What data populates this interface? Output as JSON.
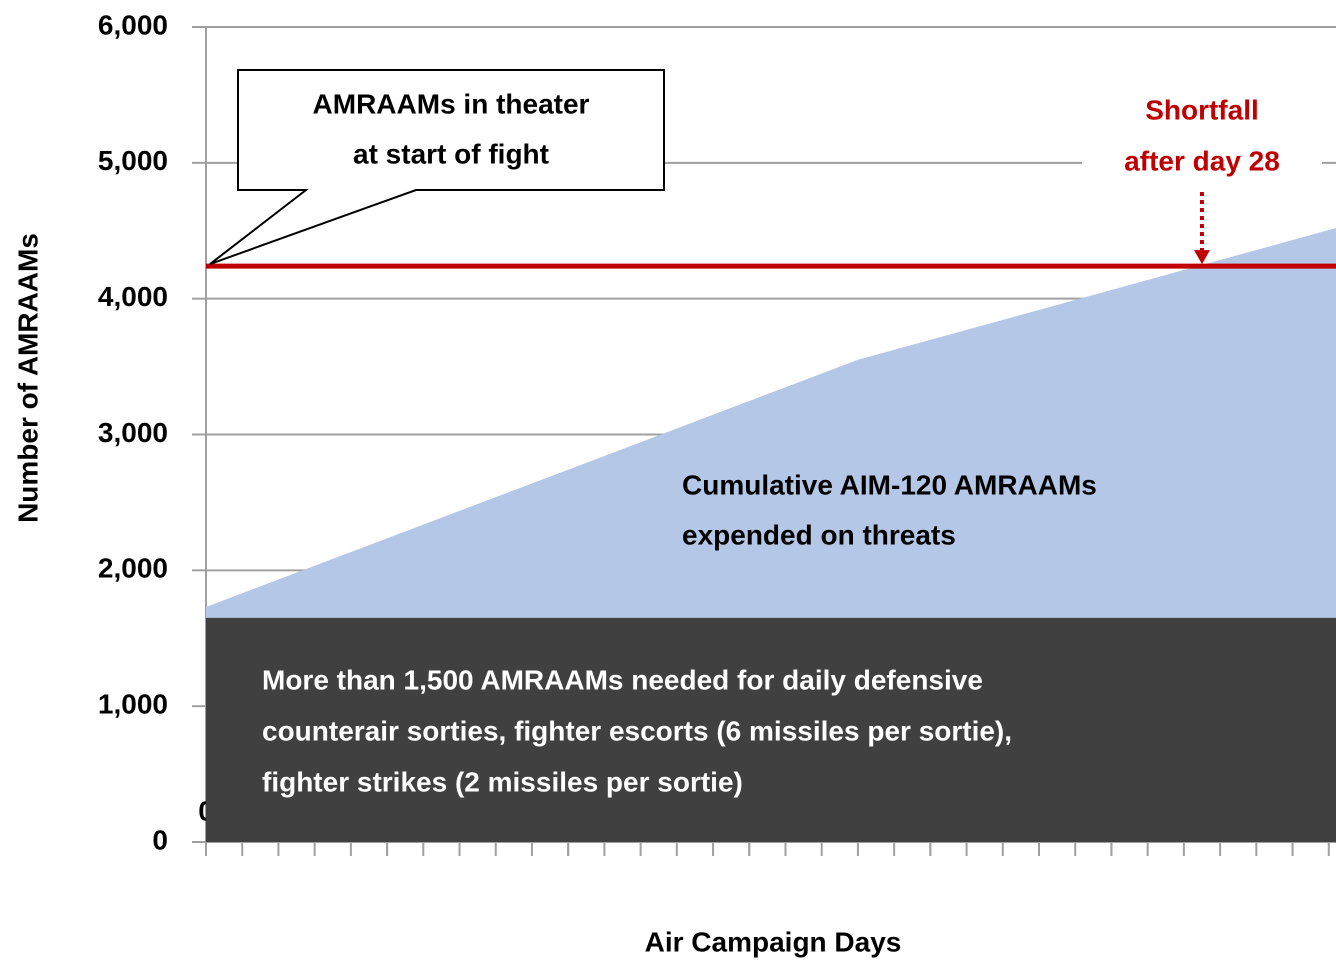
{
  "chart_data": {
    "type": "area",
    "xlabel": "Air Campaign Days",
    "ylabel": "Number of AMRAAMs",
    "x": [
      0,
      18,
      31.2
    ],
    "series": [
      {
        "color": "#b4c7e7",
        "values": [
          1730,
          3550,
          4520
        ]
      }
    ],
    "area_label": [
      "Cumulative AIM-120 AMRAAMs",
      "expended on threats"
    ],
    "base": {
      "value": 1650,
      "color": "#404040",
      "lines": [
        "More than 1,500 AMRAAMs needed for daily defensive",
        "counterair sorties, fighter escorts (6 missiles per sortie),",
        "fighter strikes (2 missiles per sortie)"
      ]
    },
    "inventory": {
      "value": 4240,
      "color": "#c00000",
      "lines": [
        "AMRAAMs in theater",
        "at start of fight"
      ]
    },
    "shortfall": {
      "x": 27.5,
      "lines": [
        "Shortfall",
        "after day 28"
      ]
    },
    "xlim": [
      0,
      31.2
    ],
    "ylim": [
      0,
      6000
    ],
    "xticks": [
      0,
      5,
      10,
      15,
      20,
      25,
      30
    ],
    "xminor_step": 1,
    "yticks": [
      0,
      {
        "value": 1000,
        "label": "1,000"
      },
      {
        "value": 2000,
        "label": "2,000"
      },
      {
        "value": 3000,
        "label": "3,000"
      },
      {
        "value": 4000,
        "label": "4,000"
      },
      {
        "value": 5000,
        "label": "5,000"
      },
      {
        "value": 6000,
        "label": "6,000"
      }
    ],
    "grid": true
  }
}
